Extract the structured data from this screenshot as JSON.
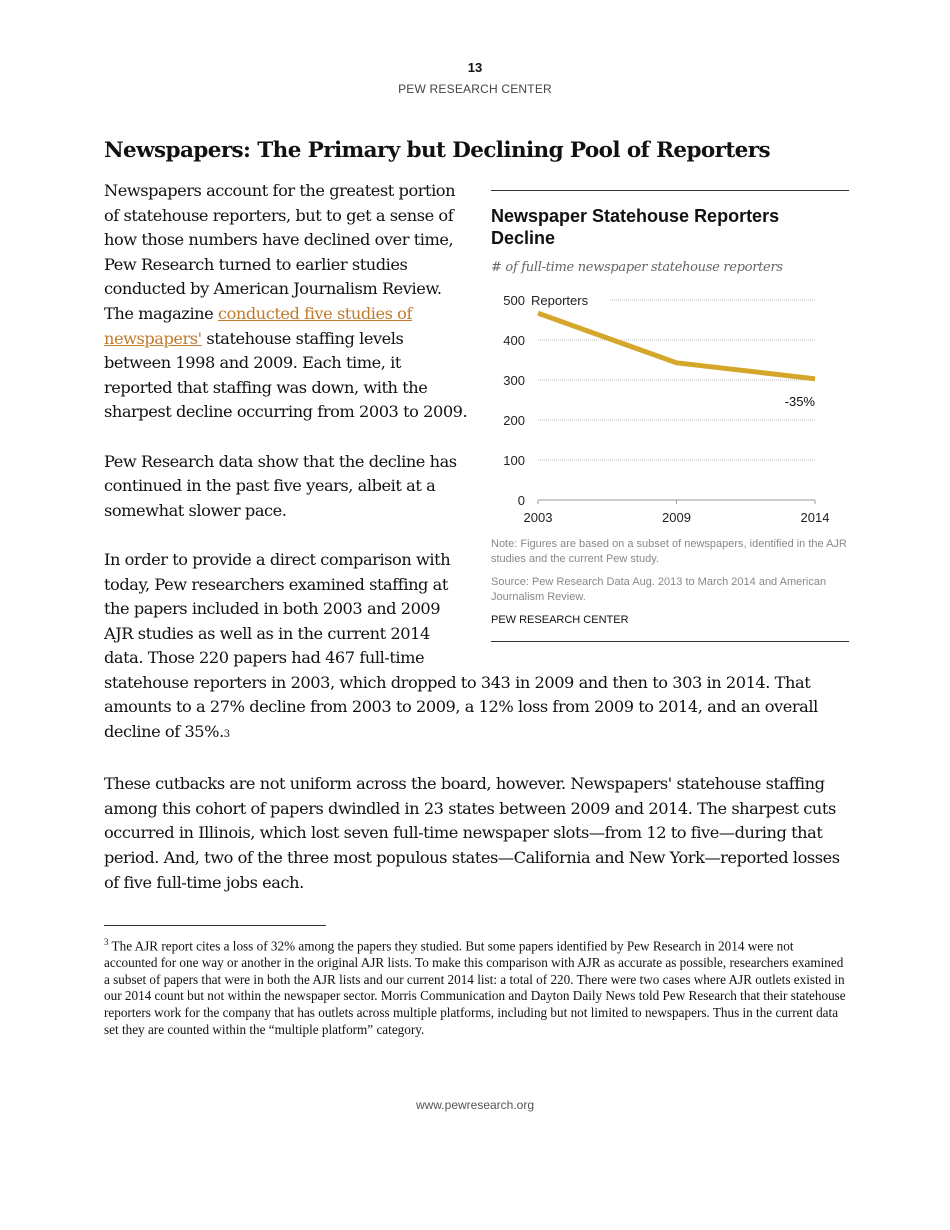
{
  "header": {
    "page_number": "13",
    "organization": "PEW RESEARCH CENTER"
  },
  "title": "Newspapers: The Primary but Declining Pool of Reporters",
  "paragraphs": {
    "p1_before": "Newspapers account for the greatest portion of statehouse reporters, but to get a sense of how those numbers have declined over time, Pew Research turned to earlier studies conducted by American Journalism Review. The magazine ",
    "p1_link": " conducted five studies of newspapers'",
    "p1_after": " statehouse staffing levels between 1998 and 2009. Each time, it reported that staffing was down, with the sharpest decline occurring from 2003 to 2009.",
    "p2": "Pew Research data show that the decline has continued in the past five years, albeit at a somewhat slower pace.",
    "p3_start": "In order to provide a direct comparison with today, Pew researchers examined staffing at the papers included in both 2003 and 2009 AJR studies as well as in the current 2014 data. Those 220 papers had 467 full-time",
    "p3_end": "statehouse reporters in 2003, which dropped to 343 in 2009 and then to 303 in 2014. That amounts to a 27% decline from 2003 to 2009, a 12% loss from 2009 to 2014, and an overall decline of 35%.",
    "p3_footnote_ref": "3",
    "p4": "These cutbacks are not uniform across the board, however. Newspapers' statehouse staffing among this cohort of papers dwindled in 23 states between 2009 and 2014. The sharpest cuts occurred in Illinois, which lost seven full-time newspaper slots—from 12 to five—during that period. And, two of the three most populous states—California and New York—reported losses of five full-time jobs each."
  },
  "chart_data": {
    "type": "line",
    "title": "Newspaper Statehouse Reporters Decline",
    "subtitle": "# of full-time newspaper statehouse reporters",
    "categories": [
      "2003",
      "2009",
      "2014"
    ],
    "series": [
      {
        "values": [
          467,
          343,
          303
        ],
        "color": "#d4a62a"
      }
    ],
    "y_ticks": [
      "0",
      "100",
      "200",
      "300",
      "400",
      "500"
    ],
    "y_unit_label": "Reporters",
    "ylim": [
      0,
      500
    ],
    "annotation": "-35%",
    "grid": true,
    "note": "Note: Figures are based on a subset of newspapers, identified in the AJR studies and the current Pew study.",
    "source": "Source: Pew Research Data Aug. 2013 to March 2014 and American Journalism Review.",
    "credit": "PEW RESEARCH CENTER"
  },
  "footnote": {
    "number": "3",
    "text": " The AJR report cites a loss of 32% among the papers they studied.  But some papers identified by Pew Research in 2014 were not accounted for one way or another in the original AJR lists. To make this comparison with AJR as accurate as possible, researchers examined a subset of papers that were in both the AJR lists and our current 2014 list: a total of 220. There were two cases where AJR outlets existed in our 2014 count but not within the newspaper sector. Morris Communication and Dayton Daily News told Pew Research that their statehouse reporters work for the company that has outlets across multiple platforms, including but not limited to newspapers. Thus in the current data set they are counted within the “multiple platform” category."
  },
  "footer": {
    "url": "www.pewresearch.org"
  }
}
